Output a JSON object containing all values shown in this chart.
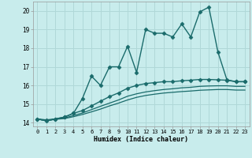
{
  "xlabel": "Humidex (Indice chaleur)",
  "background_color": "#c8ecec",
  "grid_color": "#b0d8d8",
  "line_color": "#1a6b6b",
  "xlim": [
    -0.5,
    23.5
  ],
  "ylim": [
    13.8,
    20.5
  ],
  "xticks": [
    0,
    1,
    2,
    3,
    4,
    5,
    6,
    7,
    8,
    9,
    10,
    11,
    12,
    13,
    14,
    15,
    16,
    17,
    18,
    19,
    20,
    21,
    22,
    23
  ],
  "yticks": [
    14,
    15,
    16,
    17,
    18,
    19,
    20
  ],
  "series": [
    {
      "x": [
        0,
        1,
        2,
        3,
        4,
        5,
        6,
        7,
        8,
        9,
        10,
        11,
        12,
        13,
        14,
        15,
        16,
        17,
        18,
        19,
        20,
        21,
        22,
        23
      ],
      "y": [
        14.2,
        14.1,
        14.2,
        14.3,
        14.5,
        15.3,
        16.5,
        16.0,
        17.0,
        17.0,
        18.1,
        16.7,
        19.0,
        18.8,
        18.8,
        18.6,
        19.3,
        18.6,
        19.95,
        20.2,
        17.8,
        16.3,
        16.2,
        16.2
      ],
      "marker": "D",
      "markersize": 2.5,
      "linewidth": 1.0
    },
    {
      "x": [
        0,
        1,
        2,
        3,
        4,
        5,
        6,
        7,
        8,
        9,
        10,
        11,
        12,
        13,
        14,
        15,
        16,
        17,
        18,
        19,
        20,
        21,
        22,
        23
      ],
      "y": [
        14.2,
        14.15,
        14.2,
        14.3,
        14.5,
        14.65,
        14.9,
        15.15,
        15.4,
        15.6,
        15.85,
        16.0,
        16.1,
        16.15,
        16.2,
        16.2,
        16.25,
        16.28,
        16.32,
        16.32,
        16.3,
        16.28,
        16.2,
        16.2
      ],
      "marker": "D",
      "markersize": 2.5,
      "linewidth": 1.0
    },
    {
      "x": [
        0,
        1,
        2,
        3,
        4,
        5,
        6,
        7,
        8,
        9,
        10,
        11,
        12,
        13,
        14,
        15,
        16,
        17,
        18,
        19,
        20,
        21,
        22,
        23
      ],
      "y": [
        14.2,
        14.1,
        14.2,
        14.25,
        14.38,
        14.52,
        14.7,
        14.88,
        15.05,
        15.22,
        15.42,
        15.55,
        15.65,
        15.72,
        15.78,
        15.82,
        15.87,
        15.9,
        15.95,
        15.97,
        15.98,
        15.98,
        15.95,
        15.95
      ],
      "marker": null,
      "markersize": 0,
      "linewidth": 0.9
    },
    {
      "x": [
        0,
        1,
        2,
        3,
        4,
        5,
        6,
        7,
        8,
        9,
        10,
        11,
        12,
        13,
        14,
        15,
        16,
        17,
        18,
        19,
        20,
        21,
        22,
        23
      ],
      "y": [
        14.2,
        14.1,
        14.18,
        14.22,
        14.32,
        14.44,
        14.58,
        14.73,
        14.9,
        15.05,
        15.22,
        15.36,
        15.46,
        15.53,
        15.59,
        15.63,
        15.67,
        15.7,
        15.74,
        15.76,
        15.78,
        15.78,
        15.75,
        15.75
      ],
      "marker": null,
      "markersize": 0,
      "linewidth": 0.9
    }
  ]
}
